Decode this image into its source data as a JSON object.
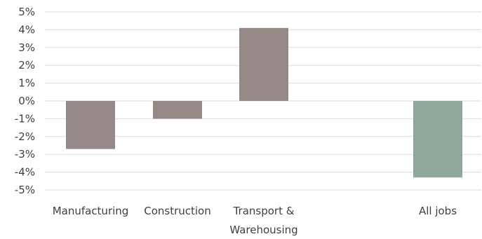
{
  "chart_data": {
    "type": "bar",
    "categories": [
      [
        "Manufacturing"
      ],
      [
        "Construction"
      ],
      [
        "Transport &",
        "Warehousing"
      ],
      [
        ""
      ],
      [
        "All jobs"
      ]
    ],
    "values": [
      -2.7,
      -1.0,
      4.1,
      null,
      -4.3
    ],
    "yticks": [
      5,
      4,
      3,
      2,
      1,
      0,
      -1,
      -2,
      -3,
      -4,
      -5
    ],
    "ytick_labels": [
      "5%",
      "4%",
      "3%",
      "2%",
      "1%",
      "0%",
      "-1%",
      "-2%",
      "-3%",
      "-4%",
      "-5%"
    ],
    "ylim": [
      -5,
      5
    ],
    "grid": true,
    "colors": {
      "sector_bar": "#958987",
      "all_jobs_bar": "#8fa89a",
      "grid": "#d9d9d9",
      "text": "#3f3f3f"
    }
  }
}
